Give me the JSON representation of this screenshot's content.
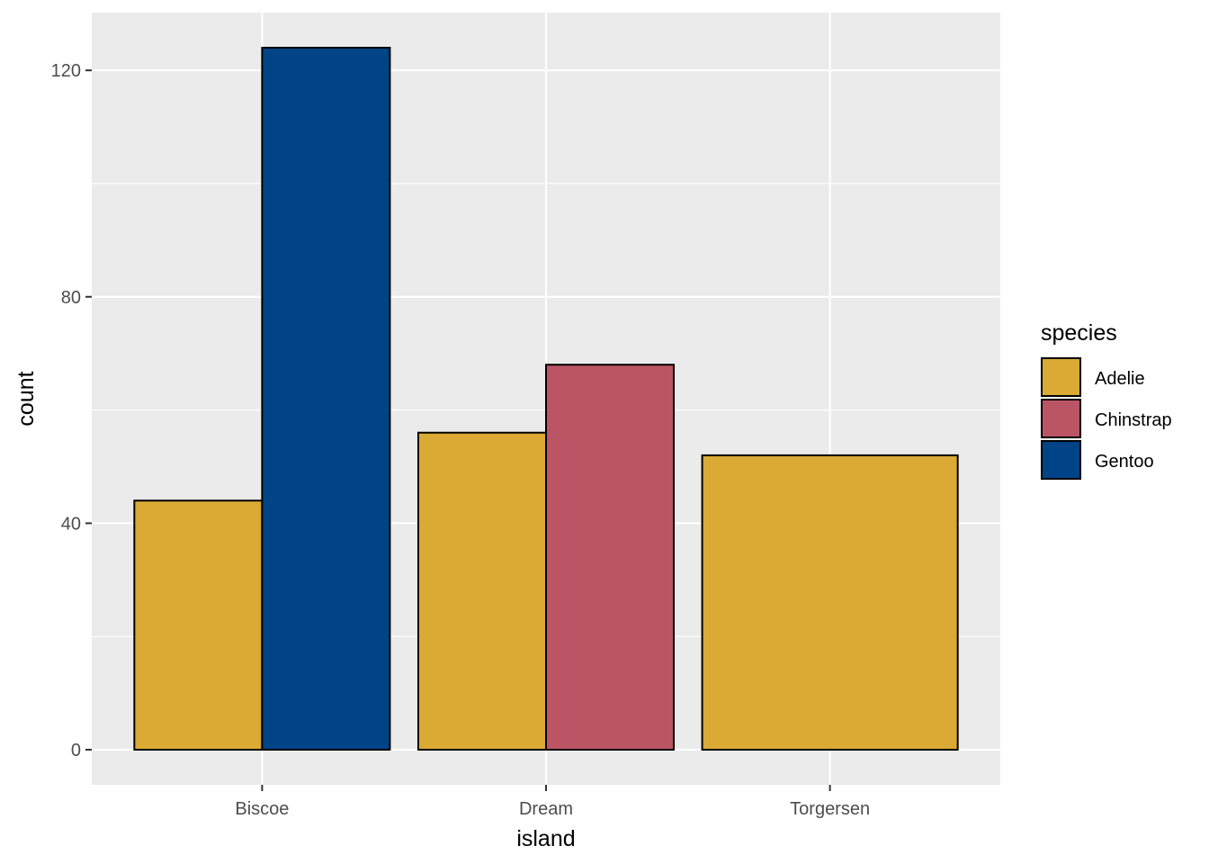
{
  "chart_data": {
    "type": "bar",
    "position": "dodge",
    "categories": [
      "Biscoe",
      "Dream",
      "Torgersen"
    ],
    "series": [
      {
        "name": "Adelie",
        "color": "#DBAA35",
        "values": [
          44,
          56,
          52
        ]
      },
      {
        "name": "Chinstrap",
        "color": "#BB5565",
        "values": [
          null,
          68,
          null
        ]
      },
      {
        "name": "Gentoo",
        "color": "#004488",
        "values": [
          124,
          null,
          null
        ]
      }
    ],
    "xlabel": "island",
    "ylabel": "count",
    "ylim": [
      -6.2,
      130.2
    ],
    "yticks": [
      0,
      40,
      80,
      120
    ],
    "grid": true,
    "legend": {
      "title": "species",
      "placement": "right"
    },
    "colors": {
      "panel_background": "#EBEBEB",
      "grid_major": "#FFFFFF",
      "bar_outline": "#000000",
      "tick_text": "#4D4D4D"
    }
  }
}
